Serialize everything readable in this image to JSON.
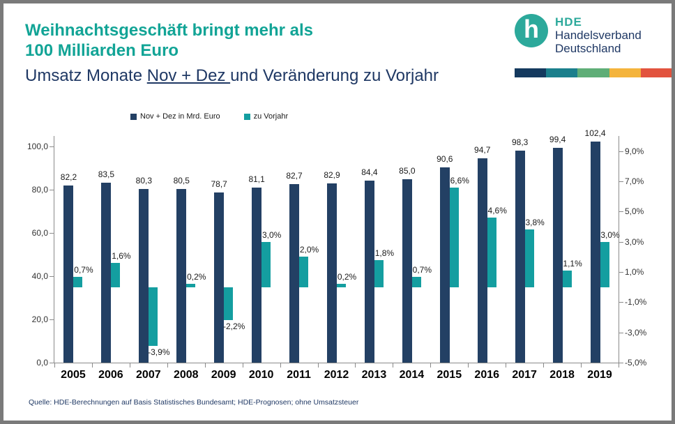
{
  "header": {
    "title": "Weihnachtsgeschäft bringt mehr als\n100 Milliarden Euro",
    "subtitle_prefix": "Umsatz Monate ",
    "subtitle_underlined": "Nov + Dez ",
    "subtitle_suffix": "und Veränderung zu Vorjahr",
    "logo": {
      "glyph": "h",
      "abbr": "HDE",
      "line1": "Handelsverband",
      "line2": "Deutschland",
      "circle_color": "#2CA99B"
    },
    "stripe_colors": [
      "#14395E",
      "#1B7F8C",
      "#5FAE77",
      "#F4B43C",
      "#E2533E"
    ]
  },
  "chart_data": {
    "type": "bar",
    "title": "Umsatz Monate Nov + Dez und Veränderung zu Vorjahr",
    "categories": [
      "2005",
      "2006",
      "2007",
      "2008",
      "2009",
      "2010",
      "2011",
      "2012",
      "2013",
      "2014",
      "2015",
      "2016",
      "2017",
      "2018",
      "2019"
    ],
    "series": [
      {
        "name": "Nov + Dez in Mrd. Euro",
        "axis": "left",
        "color": "#234064",
        "values": [
          82.2,
          83.5,
          80.3,
          80.5,
          78.7,
          81.1,
          82.7,
          82.9,
          84.4,
          85.0,
          90.6,
          94.7,
          98.3,
          99.4,
          102.4
        ],
        "labels": [
          "82,2",
          "83,5",
          "80,3",
          "80,5",
          "78,7",
          "81,1",
          "82,7",
          "82,9",
          "84,4",
          "85,0",
          "90,6",
          "94,7",
          "98,3",
          "99,4",
          "102,4"
        ]
      },
      {
        "name": "zu Vorjahr",
        "axis": "right",
        "color": "#149EA0",
        "values": [
          0.7,
          1.6,
          -3.9,
          0.2,
          -2.2,
          3.0,
          2.0,
          0.2,
          1.8,
          0.7,
          6.6,
          4.6,
          3.8,
          1.1,
          3.0
        ],
        "labels": [
          "0,7%",
          "1,6%",
          "-3,9%",
          "0,2%",
          "-2,2%",
          "3,0%",
          "2,0%",
          "0,2%",
          "1,8%",
          "0,7%",
          "6,6%",
          "4,6%",
          "3,8%",
          "1,1%",
          "3,0%"
        ]
      }
    ],
    "left_axis": {
      "min": 0,
      "max": 105,
      "ticks": [
        {
          "v": 0,
          "label": "0,0"
        },
        {
          "v": 20,
          "label": "20,0"
        },
        {
          "v": 40,
          "label": "40,0"
        },
        {
          "v": 60,
          "label": "60,0"
        },
        {
          "v": 80,
          "label": "80,0"
        },
        {
          "v": 100,
          "label": "100,0"
        }
      ]
    },
    "right_axis": {
      "min": -5,
      "max": 10,
      "ticks": [
        {
          "v": -5,
          "label": "-5,0%"
        },
        {
          "v": -3,
          "label": "-3,0%"
        },
        {
          "v": -1,
          "label": "-1,0%"
        },
        {
          "v": 1,
          "label": "1,0%"
        },
        {
          "v": 3,
          "label": "3,0%"
        },
        {
          "v": 5,
          "label": "5,0%"
        },
        {
          "v": 7,
          "label": "7,0%"
        },
        {
          "v": 9,
          "label": "9,0%"
        }
      ]
    },
    "legend_position": "top",
    "grid": false
  },
  "footer": {
    "source": "Quelle:  HDE-Berechnungen  auf Basis Statistisches Bundesamt; HDE-Prognosen;  ohne Umsatzsteuer"
  }
}
